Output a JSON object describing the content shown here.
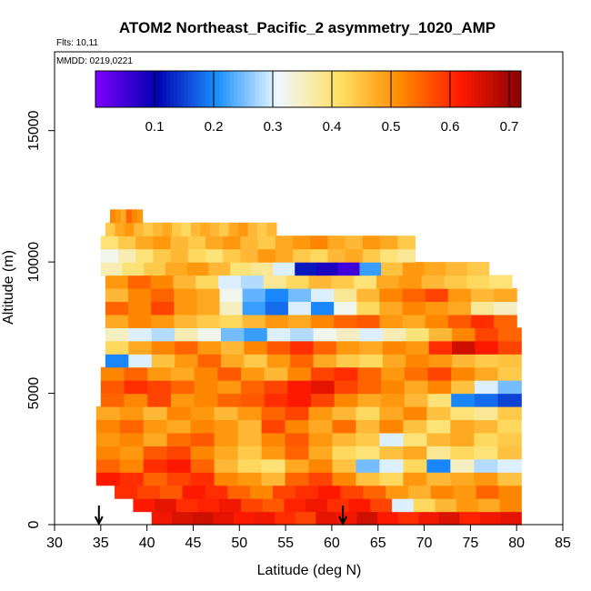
{
  "chart_data": {
    "type": "heatmap",
    "title": "ATOM2 Northeast_Pacific_2 asymmetry_1020_AMP",
    "flights_text": "Flts: 10,11",
    "mmdd_text": "MMDD: 0219,0221",
    "xlabel": "Latitude (deg N)",
    "ylabel": "Altitude (m)",
    "xlim": [
      30,
      85
    ],
    "ylim": [
      0,
      18000
    ],
    "x_ticks": [
      "30",
      "35",
      "40",
      "45",
      "50",
      "55",
      "60",
      "65",
      "70",
      "75",
      "80",
      "85"
    ],
    "y_ticks": [
      "0",
      "5000",
      "10000",
      "15000"
    ],
    "colorbar": {
      "range": [
        0.0,
        0.72
      ],
      "ticks": [
        "0.1",
        "0.2",
        "0.3",
        "0.4",
        "0.5",
        "0.6",
        "0.7"
      ]
    },
    "arrows_latitude": [
      34.8,
      61.2
    ],
    "colors": {
      "c0": "#7f00ff",
      "c1": "#0000b0",
      "c2": "#1a8fff",
      "c3": "#eef8ff",
      "c4": "#ffe066",
      "c5": "#ff8c00",
      "c6": "#ff1a00",
      "c7": "#8b0000"
    },
    "series": [
      {
        "alt_min": 0,
        "alt_max": 500,
        "lat_start": 40.5,
        "lat_end": 80.5,
        "values": [
          0.63,
          0.65,
          0.66,
          0.64,
          0.62,
          0.63,
          0.6,
          0.58,
          0.64,
          0.63,
          0.66,
          0.62,
          0.6,
          0.63,
          0.65,
          0.61,
          0.63,
          0.64
        ]
      },
      {
        "alt_min": 500,
        "alt_max": 1000,
        "lat_start": 38.5,
        "lat_end": 80.5,
        "values": [
          0.62,
          0.64,
          0.6,
          0.61,
          0.63,
          0.58,
          0.56,
          0.61,
          0.63,
          0.6,
          0.62,
          0.58,
          0.3,
          0.42,
          0.46,
          0.5,
          0.48,
          0.52
        ]
      },
      {
        "alt_min": 1000,
        "alt_max": 1500,
        "lat_start": 36.5,
        "lat_end": 80.5,
        "values": [
          0.6,
          0.58,
          0.56,
          0.62,
          0.6,
          0.55,
          0.52,
          0.58,
          0.6,
          0.62,
          0.58,
          0.55,
          0.5,
          0.47,
          0.52,
          0.5,
          0.55,
          0.52
        ]
      },
      {
        "alt_min": 1500,
        "alt_max": 2000,
        "lat_start": 34.5,
        "lat_end": 80.5,
        "values": [
          0.62,
          0.6,
          0.55,
          0.58,
          0.6,
          0.52,
          0.5,
          0.46,
          0.55,
          0.58,
          0.52,
          0.45,
          0.42,
          0.5,
          0.46,
          0.48,
          0.5,
          0.45
        ]
      },
      {
        "alt_min": 2000,
        "alt_max": 2500,
        "lat_start": 34.5,
        "lat_end": 80.5,
        "values": [
          0.55,
          0.52,
          0.6,
          0.62,
          0.55,
          0.46,
          0.42,
          0.4,
          0.48,
          0.52,
          0.45,
          0.25,
          0.3,
          0.42,
          0.2,
          0.35,
          0.28,
          0.3
        ]
      },
      {
        "alt_min": 2500,
        "alt_max": 3000,
        "lat_start": 34.5,
        "lat_end": 80.5,
        "values": [
          0.52,
          0.5,
          0.56,
          0.58,
          0.52,
          0.48,
          0.44,
          0.5,
          0.55,
          0.48,
          0.42,
          0.4,
          0.45,
          0.48,
          0.38,
          0.42,
          0.4,
          0.45
        ]
      },
      {
        "alt_min": 3000,
        "alt_max": 3500,
        "lat_start": 34.5,
        "lat_end": 80.5,
        "values": [
          0.5,
          0.52,
          0.48,
          0.54,
          0.56,
          0.5,
          0.46,
          0.52,
          0.56,
          0.5,
          0.46,
          0.44,
          0.3,
          0.4,
          0.46,
          0.48,
          0.42,
          0.44
        ]
      },
      {
        "alt_min": 3500,
        "alt_max": 4000,
        "lat_start": 34.5,
        "lat_end": 80.5,
        "values": [
          0.52,
          0.55,
          0.5,
          0.48,
          0.52,
          0.5,
          0.46,
          0.58,
          0.52,
          0.48,
          0.54,
          0.46,
          0.52,
          0.45,
          0.4,
          0.48,
          0.46,
          0.42
        ]
      },
      {
        "alt_min": 4000,
        "alt_max": 4500,
        "lat_start": 34.5,
        "lat_end": 80.5,
        "values": [
          0.48,
          0.5,
          0.46,
          0.52,
          0.5,
          0.46,
          0.5,
          0.55,
          0.58,
          0.5,
          0.46,
          0.42,
          0.48,
          0.52,
          0.45,
          0.4,
          0.38,
          0.44
        ]
      },
      {
        "alt_min": 4500,
        "alt_max": 5000,
        "lat_start": 35.0,
        "lat_end": 80.5,
        "values": [
          0.55,
          0.52,
          0.58,
          0.5,
          0.52,
          0.55,
          0.56,
          0.6,
          0.62,
          0.58,
          0.52,
          0.48,
          0.5,
          0.46,
          0.4,
          0.2,
          0.18,
          0.15
        ]
      },
      {
        "alt_min": 5000,
        "alt_max": 5500,
        "lat_start": 35.0,
        "lat_end": 80.5,
        "values": [
          0.56,
          0.6,
          0.58,
          0.55,
          0.52,
          0.5,
          0.55,
          0.58,
          0.62,
          0.64,
          0.58,
          0.55,
          0.52,
          0.48,
          0.52,
          0.45,
          0.3,
          0.25
        ]
      },
      {
        "alt_min": 5500,
        "alt_max": 6000,
        "lat_start": 35.0,
        "lat_end": 80.5,
        "values": [
          0.52,
          0.55,
          0.5,
          0.48,
          0.52,
          0.56,
          0.5,
          0.46,
          0.52,
          0.58,
          0.6,
          0.55,
          0.5,
          0.54,
          0.58,
          0.52,
          0.48,
          0.44
        ]
      },
      {
        "alt_min": 6000,
        "alt_max": 6500,
        "lat_start": 35.5,
        "lat_end": 80.5,
        "values": [
          0.2,
          0.3,
          0.45,
          0.5,
          0.55,
          0.48,
          0.44,
          0.5,
          0.55,
          0.48,
          0.44,
          0.42,
          0.48,
          0.52,
          0.5,
          0.46,
          0.44,
          0.45
        ]
      },
      {
        "alt_min": 6500,
        "alt_max": 7000,
        "lat_start": 35.5,
        "lat_end": 80.5,
        "values": [
          0.42,
          0.48,
          0.52,
          0.55,
          0.5,
          0.46,
          0.52,
          0.56,
          0.6,
          0.55,
          0.5,
          0.48,
          0.52,
          0.5,
          0.6,
          0.66,
          0.62,
          0.58
        ]
      },
      {
        "alt_min": 7000,
        "alt_max": 7500,
        "lat_start": 35.5,
        "lat_end": 80.5,
        "values": [
          0.35,
          0.3,
          0.28,
          0.36,
          0.32,
          0.25,
          0.22,
          0.3,
          0.28,
          0.32,
          0.35,
          0.3,
          0.36,
          0.4,
          0.46,
          0.52,
          0.58,
          0.55
        ]
      },
      {
        "alt_min": 7500,
        "alt_max": 8000,
        "lat_start": 35.5,
        "lat_end": 80.0,
        "values": [
          0.48,
          0.52,
          0.5,
          0.46,
          0.44,
          0.42,
          0.46,
          0.5,
          0.48,
          0.52,
          0.55,
          0.56,
          0.5,
          0.48,
          0.52,
          0.56,
          0.6,
          0.55
        ]
      },
      {
        "alt_min": 8000,
        "alt_max": 8500,
        "lat_start": 35.5,
        "lat_end": 80.0,
        "values": [
          0.55,
          0.52,
          0.58,
          0.5,
          0.48,
          0.35,
          0.22,
          0.18,
          0.3,
          0.2,
          0.32,
          0.42,
          0.48,
          0.52,
          0.5,
          0.48,
          0.38,
          0.35
        ]
      },
      {
        "alt_min": 8500,
        "alt_max": 9000,
        "lat_start": 35.5,
        "lat_end": 80.0,
        "values": [
          0.46,
          0.52,
          0.55,
          0.5,
          0.48,
          0.32,
          0.24,
          0.2,
          0.25,
          0.3,
          0.38,
          0.46,
          0.52,
          0.55,
          0.58,
          0.5,
          0.46,
          0.48
        ]
      },
      {
        "alt_min": 9000,
        "alt_max": 9500,
        "lat_start": 35.5,
        "lat_end": 79.5,
        "values": [
          0.5,
          0.55,
          0.52,
          0.46,
          0.42,
          0.3,
          0.28,
          0.38,
          0.42,
          0.46,
          0.44,
          0.4,
          0.48,
          0.5,
          0.46,
          0.44,
          0.42,
          0.4
        ]
      },
      {
        "alt_min": 9500,
        "alt_max": 10000,
        "lat_start": 35.0,
        "lat_end": 77.0,
        "values": [
          0.36,
          0.4,
          0.44,
          0.48,
          0.5,
          0.46,
          0.4,
          0.38,
          0.3,
          0.12,
          0.08,
          0.05,
          0.22,
          0.45,
          0.5,
          0.48,
          0.46,
          0.44
        ]
      },
      {
        "alt_min": 10000,
        "alt_max": 10500,
        "lat_start": 35.0,
        "lat_end": 69.0,
        "values": [
          0.32,
          0.36,
          0.4,
          0.44,
          0.46,
          0.42,
          0.4,
          0.44,
          0.46,
          0.5,
          0.48,
          0.44,
          0.42,
          0.46,
          0.48,
          0.44,
          0.4,
          0.38
        ]
      },
      {
        "alt_min": 10500,
        "alt_max": 11000,
        "lat_start": 35.0,
        "lat_end": 69.0,
        "values": [
          0.4,
          0.44,
          0.48,
          0.5,
          0.46,
          0.44,
          0.48,
          0.5,
          0.46,
          0.44,
          0.48,
          0.5,
          0.52,
          0.48,
          0.46,
          0.5,
          0.48,
          0.44
        ]
      },
      {
        "alt_min": 11000,
        "alt_max": 11500,
        "lat_start": 35.5,
        "lat_end": 54.0,
        "values": [
          0.44,
          0.48,
          0.5,
          0.46,
          0.44,
          0.46,
          0.48,
          0.44,
          0.42,
          0.46,
          0.48,
          0.46,
          0.44,
          0.48,
          0.5,
          0.46,
          0.44,
          0.46
        ]
      },
      {
        "alt_min": 11500,
        "alt_max": 12000,
        "lat_start": 36.0,
        "lat_end": 39.5,
        "values": [
          0.52,
          0.5,
          0.48,
          0.55,
          0.52,
          0.5
        ]
      }
    ]
  }
}
